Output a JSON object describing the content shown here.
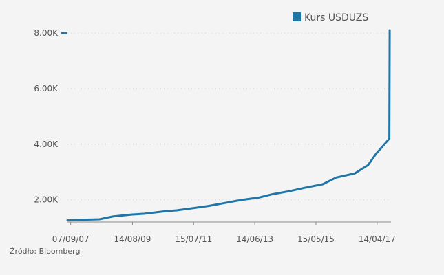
{
  "chart_data": {
    "type": "line",
    "title": "",
    "xlabel": "",
    "ylabel": "",
    "legend_position": "top-right",
    "grid": "horizontal dotted",
    "x_range": [
      "2007-08-01",
      "2017-09-20"
    ],
    "ylim": [
      1200,
      8200
    ],
    "y_ticks": [
      {
        "value": 2000,
        "label": "2.00K"
      },
      {
        "value": 4000,
        "label": "4.00K"
      },
      {
        "value": 6000,
        "label": "6.00K"
      },
      {
        "value": 8000,
        "label": "8.00K"
      }
    ],
    "x_ticks": [
      {
        "date": "2007-09-07",
        "label": "07/09/07"
      },
      {
        "date": "2009-08-14",
        "label": "14/08/09"
      },
      {
        "date": "2011-07-15",
        "label": "15/07/11"
      },
      {
        "date": "2013-06-14",
        "label": "14/06/13"
      },
      {
        "date": "2015-05-15",
        "label": "15/05/15"
      },
      {
        "date": "2017-04-14",
        "label": "14/04/17"
      }
    ],
    "series": [
      {
        "name": "Kurs USDUZS",
        "color": "#2176a8",
        "points": [
          [
            "2007-08-01",
            1260
          ],
          [
            "2008-01-01",
            1280
          ],
          [
            "2008-08-01",
            1300
          ],
          [
            "2009-01-01",
            1400
          ],
          [
            "2009-08-01",
            1470
          ],
          [
            "2010-01-01",
            1500
          ],
          [
            "2010-08-01",
            1580
          ],
          [
            "2011-01-01",
            1620
          ],
          [
            "2011-08-01",
            1710
          ],
          [
            "2012-01-01",
            1780
          ],
          [
            "2012-08-01",
            1900
          ],
          [
            "2013-01-01",
            1990
          ],
          [
            "2013-08-01",
            2080
          ],
          [
            "2014-01-01",
            2200
          ],
          [
            "2014-08-01",
            2320
          ],
          [
            "2015-01-01",
            2430
          ],
          [
            "2015-08-01",
            2560
          ],
          [
            "2016-01-01",
            2800
          ],
          [
            "2016-08-01",
            2950
          ],
          [
            "2017-01-01",
            3250
          ],
          [
            "2017-04-01",
            3650
          ],
          [
            "2017-09-01",
            4200
          ],
          [
            "2017-09-05",
            8100
          ]
        ]
      }
    ]
  },
  "legend": {
    "label": "Kurs USDUZS"
  },
  "source": {
    "text": "Źródło: Bloomberg"
  }
}
